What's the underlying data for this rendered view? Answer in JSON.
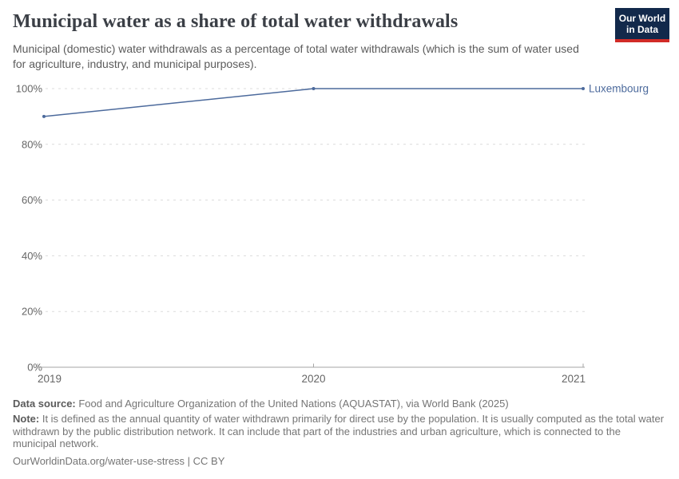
{
  "header": {
    "title": "Municipal water as a share of total water withdrawals",
    "subtitle": "Municipal (domestic) water withdrawals as a percentage of total water withdrawals (which is the sum of water used for agriculture, industry, and municipal purposes).",
    "logo": {
      "line1": "Our World",
      "line2": "in Data"
    }
  },
  "chart_data": {
    "type": "line",
    "title": "Municipal water as a share of total water withdrawals",
    "x": [
      2019,
      2020,
      2021
    ],
    "series": [
      {
        "name": "Luxembourg",
        "values": [
          90,
          100,
          100
        ],
        "color": "#4c6a9c"
      }
    ],
    "xlabel": "",
    "ylabel": "",
    "ylim": [
      0,
      100
    ],
    "yticks": [
      0,
      20,
      40,
      60,
      80,
      100
    ],
    "ytick_labels": [
      "0%",
      "20%",
      "40%",
      "60%",
      "80%",
      "100%"
    ],
    "xticks": [
      2019,
      2020,
      2021
    ],
    "xtick_labels": [
      "2019",
      "2020",
      "2021"
    ],
    "grid": "horizontal-dashed",
    "legend_position": "end-of-line-label"
  },
  "footer": {
    "data_source_label": "Data source:",
    "data_source_text": " Food and Agriculture Organization of the United Nations (AQUASTAT), via World Bank (2025)",
    "note_label": "Note:",
    "note_text": " It is defined as the annual quantity of water withdrawn primarily for direct use by the population. It is usually computed as the total water withdrawn by the public distribution network. It can include that part of the industries and urban agriculture, which is connected to the municipal network.",
    "citation": "OurWorldinData.org/water-use-stress | CC BY"
  },
  "colors": {
    "line": "#4c6a9c",
    "entity_label": "#4c6a9c",
    "grid": "#dcdcdc",
    "axis": "#a5a5a5",
    "tick_text": "#666666",
    "title_text": "#3b3f46",
    "logo_bg": "#12294b",
    "logo_red": "#d12b27"
  }
}
